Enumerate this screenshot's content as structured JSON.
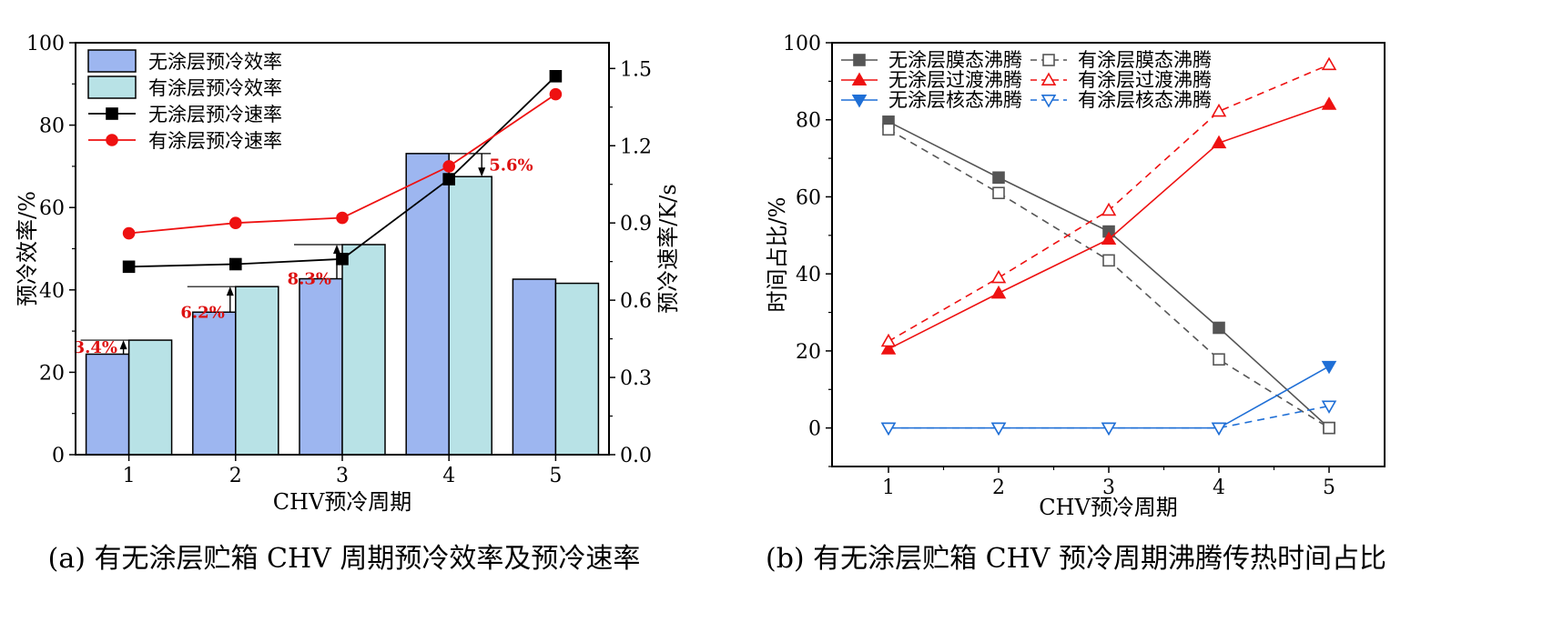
{
  "captions": {
    "a": "(a) 有无涂层贮箱 CHV 周期预冷效率及预冷速率",
    "b": "(b) 有无涂层贮箱 CHV 预冷周期沸腾传热时间占比"
  },
  "chart_data": [
    {
      "type": "bar",
      "categories": [
        "1",
        "2",
        "3",
        "4",
        "5"
      ],
      "xlabel": "CHV预冷周期",
      "ylabel": "预冷效率/%",
      "ylim": [
        0,
        100
      ],
      "yticks": [
        "0",
        "20",
        "40",
        "60",
        "80",
        "100"
      ],
      "y2label": "预冷速率/K/s",
      "y2lim": [
        0,
        1.6
      ],
      "y2ticks": [
        "0.0",
        "0.3",
        "0.6",
        "0.9",
        "1.2",
        "1.5"
      ],
      "series": [
        {
          "name": "无涂层预冷效率",
          "kind": "bar",
          "axis": "left",
          "color": "#9db6f0",
          "values": [
            24.4,
            34.6,
            42.7,
            73.1,
            42.6
          ]
        },
        {
          "name": "有涂层预冷效率",
          "kind": "bar",
          "axis": "left",
          "color": "#b8e2e6",
          "values": [
            27.8,
            40.8,
            51.0,
            67.5,
            41.6
          ]
        },
        {
          "name": "无涂层预冷速率",
          "kind": "line",
          "marker": "square",
          "axis": "right",
          "color": "#000000",
          "values": [
            0.73,
            0.74,
            0.76,
            1.07,
            1.47
          ]
        },
        {
          "name": "有涂层预冷速率",
          "kind": "line",
          "marker": "circle",
          "axis": "right",
          "color": "#ee1111",
          "values": [
            0.86,
            0.9,
            0.92,
            1.12,
            1.4
          ]
        }
      ],
      "annotations": [
        {
          "text": "3.4%",
          "category": 0,
          "from": 24.4,
          "to": 27.8
        },
        {
          "text": "6.2%",
          "category": 1,
          "from": 34.6,
          "to": 40.8
        },
        {
          "text": "8.3%",
          "category": 2,
          "from": 42.7,
          "to": 51.0
        },
        {
          "text": "5.6%",
          "category": 3,
          "from": 73.1,
          "to": 67.5
        }
      ],
      "legend": "top-left"
    },
    {
      "type": "line",
      "x": [
        1,
        2,
        3,
        4,
        5
      ],
      "xticks": [
        "1",
        "2",
        "3",
        "4",
        "5"
      ],
      "xlabel": "CHV预冷周期",
      "ylabel": "时间占比/%",
      "ylim": [
        -10,
        100
      ],
      "yticks": [
        "0",
        "20",
        "40",
        "60",
        "80",
        "100"
      ],
      "series": [
        {
          "name": "无涂层膜态沸腾",
          "color": "#555555",
          "marker": "square",
          "filled": true,
          "dashed": false,
          "values": [
            79.5,
            65.0,
            51.0,
            26.0,
            0.0
          ]
        },
        {
          "name": "有涂层膜态沸腾",
          "color": "#555555",
          "marker": "square",
          "filled": false,
          "dashed": true,
          "values": [
            77.5,
            61.0,
            43.5,
            17.8,
            0.0
          ]
        },
        {
          "name": "无涂层过渡沸腾",
          "color": "#ee1111",
          "marker": "triangle-up",
          "filled": true,
          "dashed": false,
          "values": [
            20.5,
            35.0,
            49.0,
            74.0,
            84.0
          ]
        },
        {
          "name": "有涂层过渡沸腾",
          "color": "#ee1111",
          "marker": "triangle-up",
          "filled": false,
          "dashed": true,
          "values": [
            22.5,
            39.0,
            56.5,
            82.2,
            94.3
          ]
        },
        {
          "name": "无涂层核态沸腾",
          "color": "#1f6fd6",
          "marker": "triangle-down",
          "filled": true,
          "dashed": false,
          "values": [
            0.0,
            0.0,
            0.0,
            0.0,
            16.0
          ]
        },
        {
          "name": "有涂层核态沸腾",
          "color": "#1f6fd6",
          "marker": "triangle-down",
          "filled": false,
          "dashed": true,
          "values": [
            0.0,
            0.0,
            0.0,
            0.0,
            5.7
          ]
        }
      ],
      "legend": "top"
    }
  ]
}
